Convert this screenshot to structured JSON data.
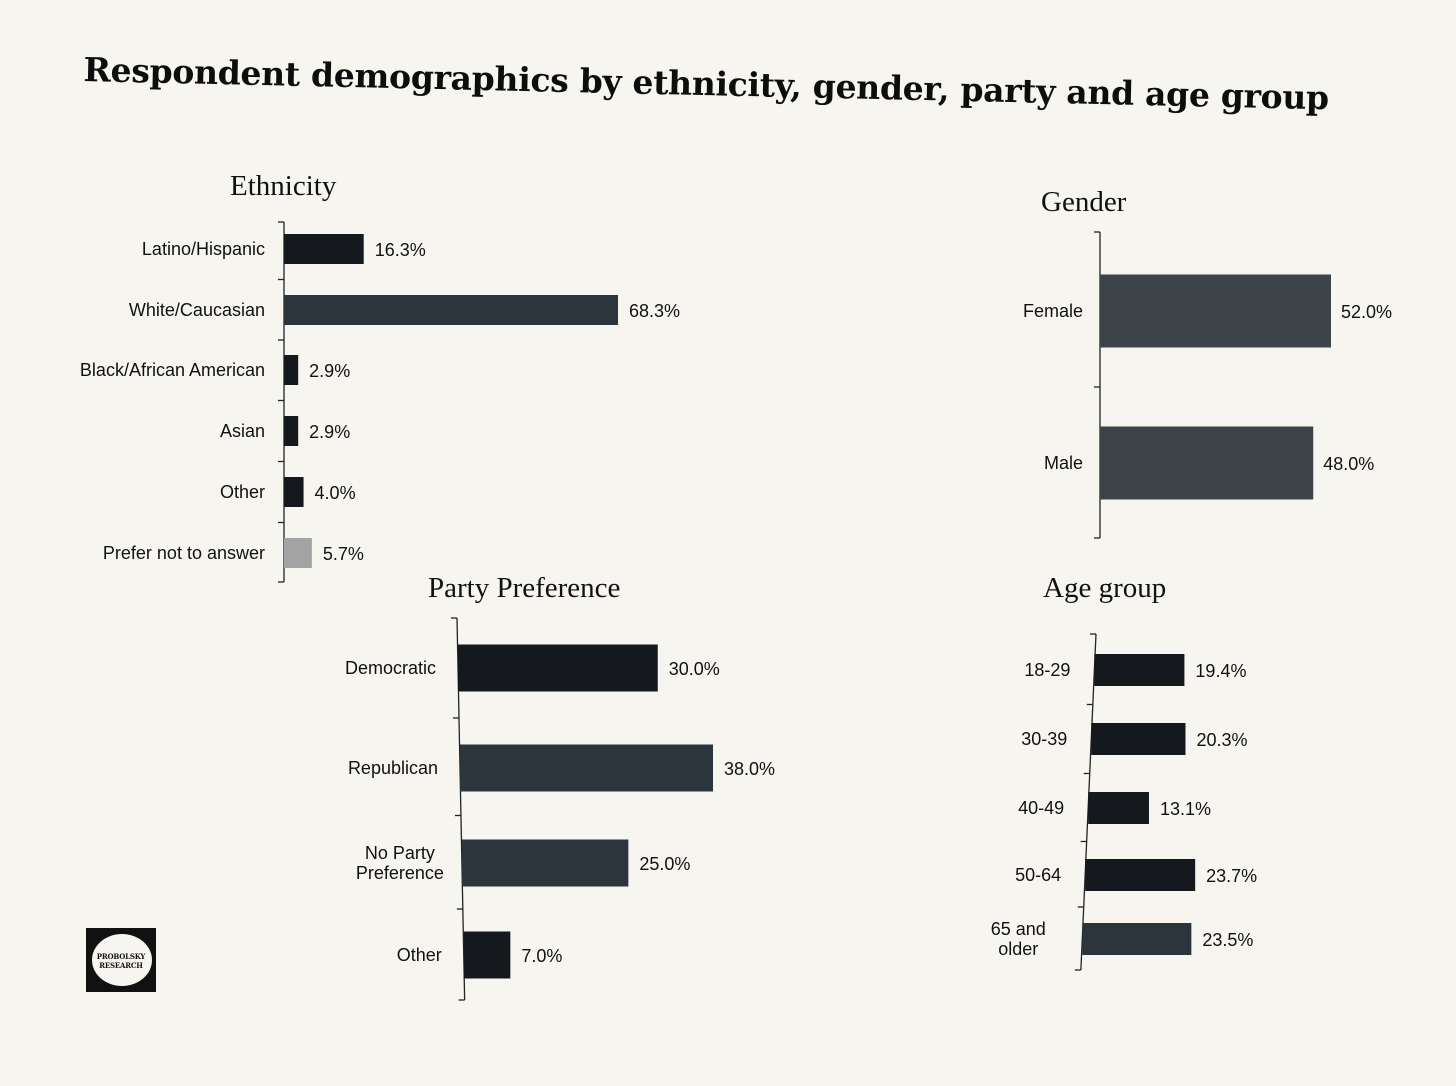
{
  "title": "Respondent demographics by ethnicity, gender, party and age group",
  "logo": {
    "line1": "PROBOLSKY",
    "line2": "RESEARCH"
  },
  "colors": {
    "bar_dark": "#15191e",
    "bar_slate": "#2c353c",
    "bar_gray": "#a3a3a3",
    "gender_bar": "#3c444a",
    "gender_label": "#3a3a3a"
  },
  "chart_data": [
    {
      "id": "ethnicity",
      "type": "bar",
      "orientation": "horizontal",
      "title": "Ethnicity",
      "categories": [
        "Latino/Hispanic",
        "White/Caucasian",
        "Black/African American",
        "Asian",
        "Other",
        "Prefer not to answer"
      ],
      "values": [
        16.3,
        68.3,
        2.9,
        2.9,
        4.0,
        5.7
      ],
      "labels": [
        "16.3%",
        "68.3%",
        "2.9%",
        "2.9%",
        "4.0%",
        "5.7%"
      ],
      "unit": "%",
      "xlim": [
        0,
        68.3
      ],
      "grid": false,
      "bar_colors": [
        "#15191e",
        "#2c353c",
        "#15191e",
        "#15191e",
        "#15191e",
        "#a3a3a3"
      ]
    },
    {
      "id": "gender",
      "type": "bar",
      "orientation": "horizontal",
      "title": "Gender",
      "categories": [
        "Female",
        "Male"
      ],
      "values": [
        52.0,
        48.0
      ],
      "labels": [
        "52.0%",
        "48.0%"
      ],
      "unit": "%",
      "xlim": [
        0,
        52.0
      ],
      "grid": false,
      "bar_colors": [
        "#3c444a",
        "#3c444a"
      ]
    },
    {
      "id": "party",
      "type": "bar",
      "orientation": "horizontal",
      "title": "Party Preference",
      "categories": [
        [
          "Democratic"
        ],
        [
          "Republican"
        ],
        [
          "No Party",
          "Preference"
        ],
        [
          "Other"
        ]
      ],
      "values": [
        30.0,
        38.0,
        25.0,
        7.0
      ],
      "labels": [
        "30.0%",
        "38.0%",
        "25.0%",
        "7.0%"
      ],
      "unit": "%",
      "xlim": [
        0,
        38.0
      ],
      "grid": false,
      "bar_colors": [
        "#15191e",
        "#2c353c",
        "#2c353c",
        "#15191e"
      ]
    },
    {
      "id": "age",
      "type": "bar",
      "orientation": "horizontal",
      "title": "Age group",
      "categories": [
        [
          "18-29"
        ],
        [
          "30-39"
        ],
        [
          "40-49"
        ],
        [
          "50-64"
        ],
        [
          "65 and",
          "older"
        ]
      ],
      "values": [
        19.4,
        20.3,
        13.1,
        23.7,
        23.5
      ],
      "labels": [
        "19.4%",
        "20.3%",
        "13.1%",
        "23.7%",
        "23.5%"
      ],
      "unit": "%",
      "xlim": [
        0,
        23.7
      ],
      "grid": false,
      "bar_colors": [
        "#15191e",
        "#15191e",
        "#15191e",
        "#15191e",
        "#2c353c"
      ]
    }
  ]
}
